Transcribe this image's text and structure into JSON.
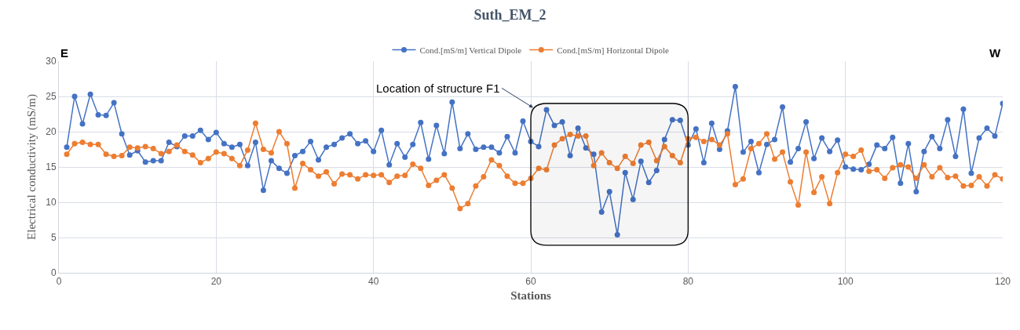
{
  "chart_data": {
    "type": "line",
    "title": "Suth_EM_2",
    "xlabel": "Stations",
    "ylabel": "Electrical conductivity (mS/m)",
    "x": [
      1,
      2,
      3,
      4,
      5,
      6,
      7,
      8,
      9,
      10,
      11,
      12,
      13,
      14,
      15,
      16,
      17,
      18,
      19,
      20,
      21,
      22,
      23,
      24,
      25,
      26,
      27,
      28,
      29,
      30,
      31,
      32,
      33,
      34,
      35,
      36,
      37,
      38,
      39,
      40,
      41,
      42,
      43,
      44,
      45,
      46,
      47,
      48,
      49,
      50,
      51,
      52,
      53,
      54,
      55,
      56,
      57,
      58,
      59,
      60,
      61,
      62,
      63,
      64,
      65,
      66,
      67,
      68,
      69,
      70,
      71,
      72,
      73,
      74,
      75,
      76,
      77,
      78,
      79,
      80,
      81,
      82,
      83,
      84,
      85,
      86,
      87,
      88,
      89,
      90,
      91,
      92,
      93,
      94,
      95,
      96,
      97,
      98,
      99,
      100,
      101,
      102,
      103,
      104,
      105,
      106,
      107,
      108,
      109,
      110,
      111,
      112,
      113,
      114,
      115,
      116,
      117,
      118,
      119,
      120
    ],
    "series": [
      {
        "name": "Cond.[mS/m] Vertical Dipole",
        "color": "#4472c4",
        "values": [
          17.8,
          25.0,
          21.1,
          25.3,
          22.4,
          22.3,
          24.1,
          19.7,
          16.7,
          17.3,
          15.7,
          15.9,
          15.9,
          18.5,
          17.9,
          19.4,
          19.4,
          20.2,
          18.9,
          19.9,
          18.3,
          17.8,
          18.2,
          15.2,
          18.5,
          11.7,
          15.9,
          14.8,
          14.1,
          16.6,
          17.2,
          18.6,
          16.0,
          17.8,
          18.2,
          19.1,
          19.7,
          18.3,
          18.7,
          17.2,
          20.2,
          15.3,
          18.3,
          16.4,
          18.2,
          21.3,
          16.1,
          20.9,
          16.9,
          24.2,
          17.6,
          19.7,
          17.5,
          17.8,
          17.8,
          17.0,
          19.3,
          17.0,
          21.5,
          18.6,
          17.9,
          23.1,
          20.9,
          21.4,
          16.6,
          20.5,
          17.7,
          16.8,
          8.6,
          11.5,
          5.4,
          14.2,
          10.4,
          15.8,
          12.8,
          14.5,
          18.9,
          21.7,
          21.6,
          18.1,
          20.4,
          15.6,
          21.2,
          17.5,
          20.1,
          26.4,
          17.1,
          18.6,
          14.2,
          18.2,
          18.9,
          23.5,
          15.7,
          17.6,
          21.4,
          16.2,
          19.1,
          17.2,
          18.8,
          15.0,
          14.7,
          14.6,
          15.4,
          18.1,
          17.6,
          19.2,
          12.7,
          18.3,
          11.5,
          17.2,
          19.3,
          17.6,
          21.7,
          16.5,
          23.2,
          14.1,
          19.1,
          20.5,
          19.4,
          24.0
        ]
      },
      {
        "name": "Cond.[mS/m] Horizontal Dipole",
        "color": "#ed7d31",
        "values": [
          16.8,
          18.3,
          18.5,
          18.2,
          18.2,
          16.8,
          16.5,
          16.6,
          17.8,
          17.7,
          17.9,
          17.6,
          16.9,
          17.2,
          18.1,
          17.2,
          16.7,
          15.6,
          16.2,
          17.1,
          16.9,
          16.2,
          15.2,
          17.4,
          21.2,
          17.5,
          17.0,
          20.0,
          18.3,
          12.0,
          15.5,
          14.6,
          13.7,
          14.3,
          12.6,
          14.0,
          13.9,
          13.3,
          13.9,
          13.8,
          13.9,
          12.8,
          13.7,
          13.8,
          15.4,
          14.8,
          12.4,
          13.1,
          13.9,
          12.0,
          9.1,
          9.8,
          12.3,
          13.6,
          16.0,
          15.2,
          13.7,
          12.7,
          12.7,
          13.4,
          14.8,
          14.6,
          18.1,
          19.0,
          19.6,
          19.4,
          19.4,
          15.2,
          17.0,
          15.6,
          14.8,
          16.5,
          15.5,
          18.1,
          18.5,
          15.9,
          17.9,
          16.6,
          15.6,
          19.0,
          19.2,
          18.6,
          18.9,
          18.1,
          19.7,
          12.5,
          13.3,
          17.6,
          18.3,
          19.7,
          16.1,
          17.1,
          12.9,
          9.6,
          17.1,
          11.4,
          13.6,
          9.8,
          14.2,
          16.8,
          16.5,
          17.4,
          14.4,
          14.6,
          13.4,
          14.9,
          15.3,
          15.0,
          13.4,
          15.3,
          13.6,
          14.9,
          13.5,
          13.7,
          12.3,
          12.4,
          13.6,
          12.3,
          13.9,
          13.3
        ]
      }
    ],
    "xlim": [
      0,
      120
    ],
    "xticks": [
      0,
      20,
      40,
      60,
      80,
      100,
      120
    ],
    "ylim": [
      0,
      30
    ],
    "yticks": [
      0,
      5,
      10,
      15,
      20,
      25,
      30
    ],
    "grid": true,
    "legend": "top",
    "marker": "circle",
    "line_style": "solid",
    "bands": [
      {
        "axis": "x",
        "from": 60,
        "to": 80,
        "label": "Location of structure F1"
      }
    ],
    "annotations": [
      "E",
      "W"
    ]
  }
}
